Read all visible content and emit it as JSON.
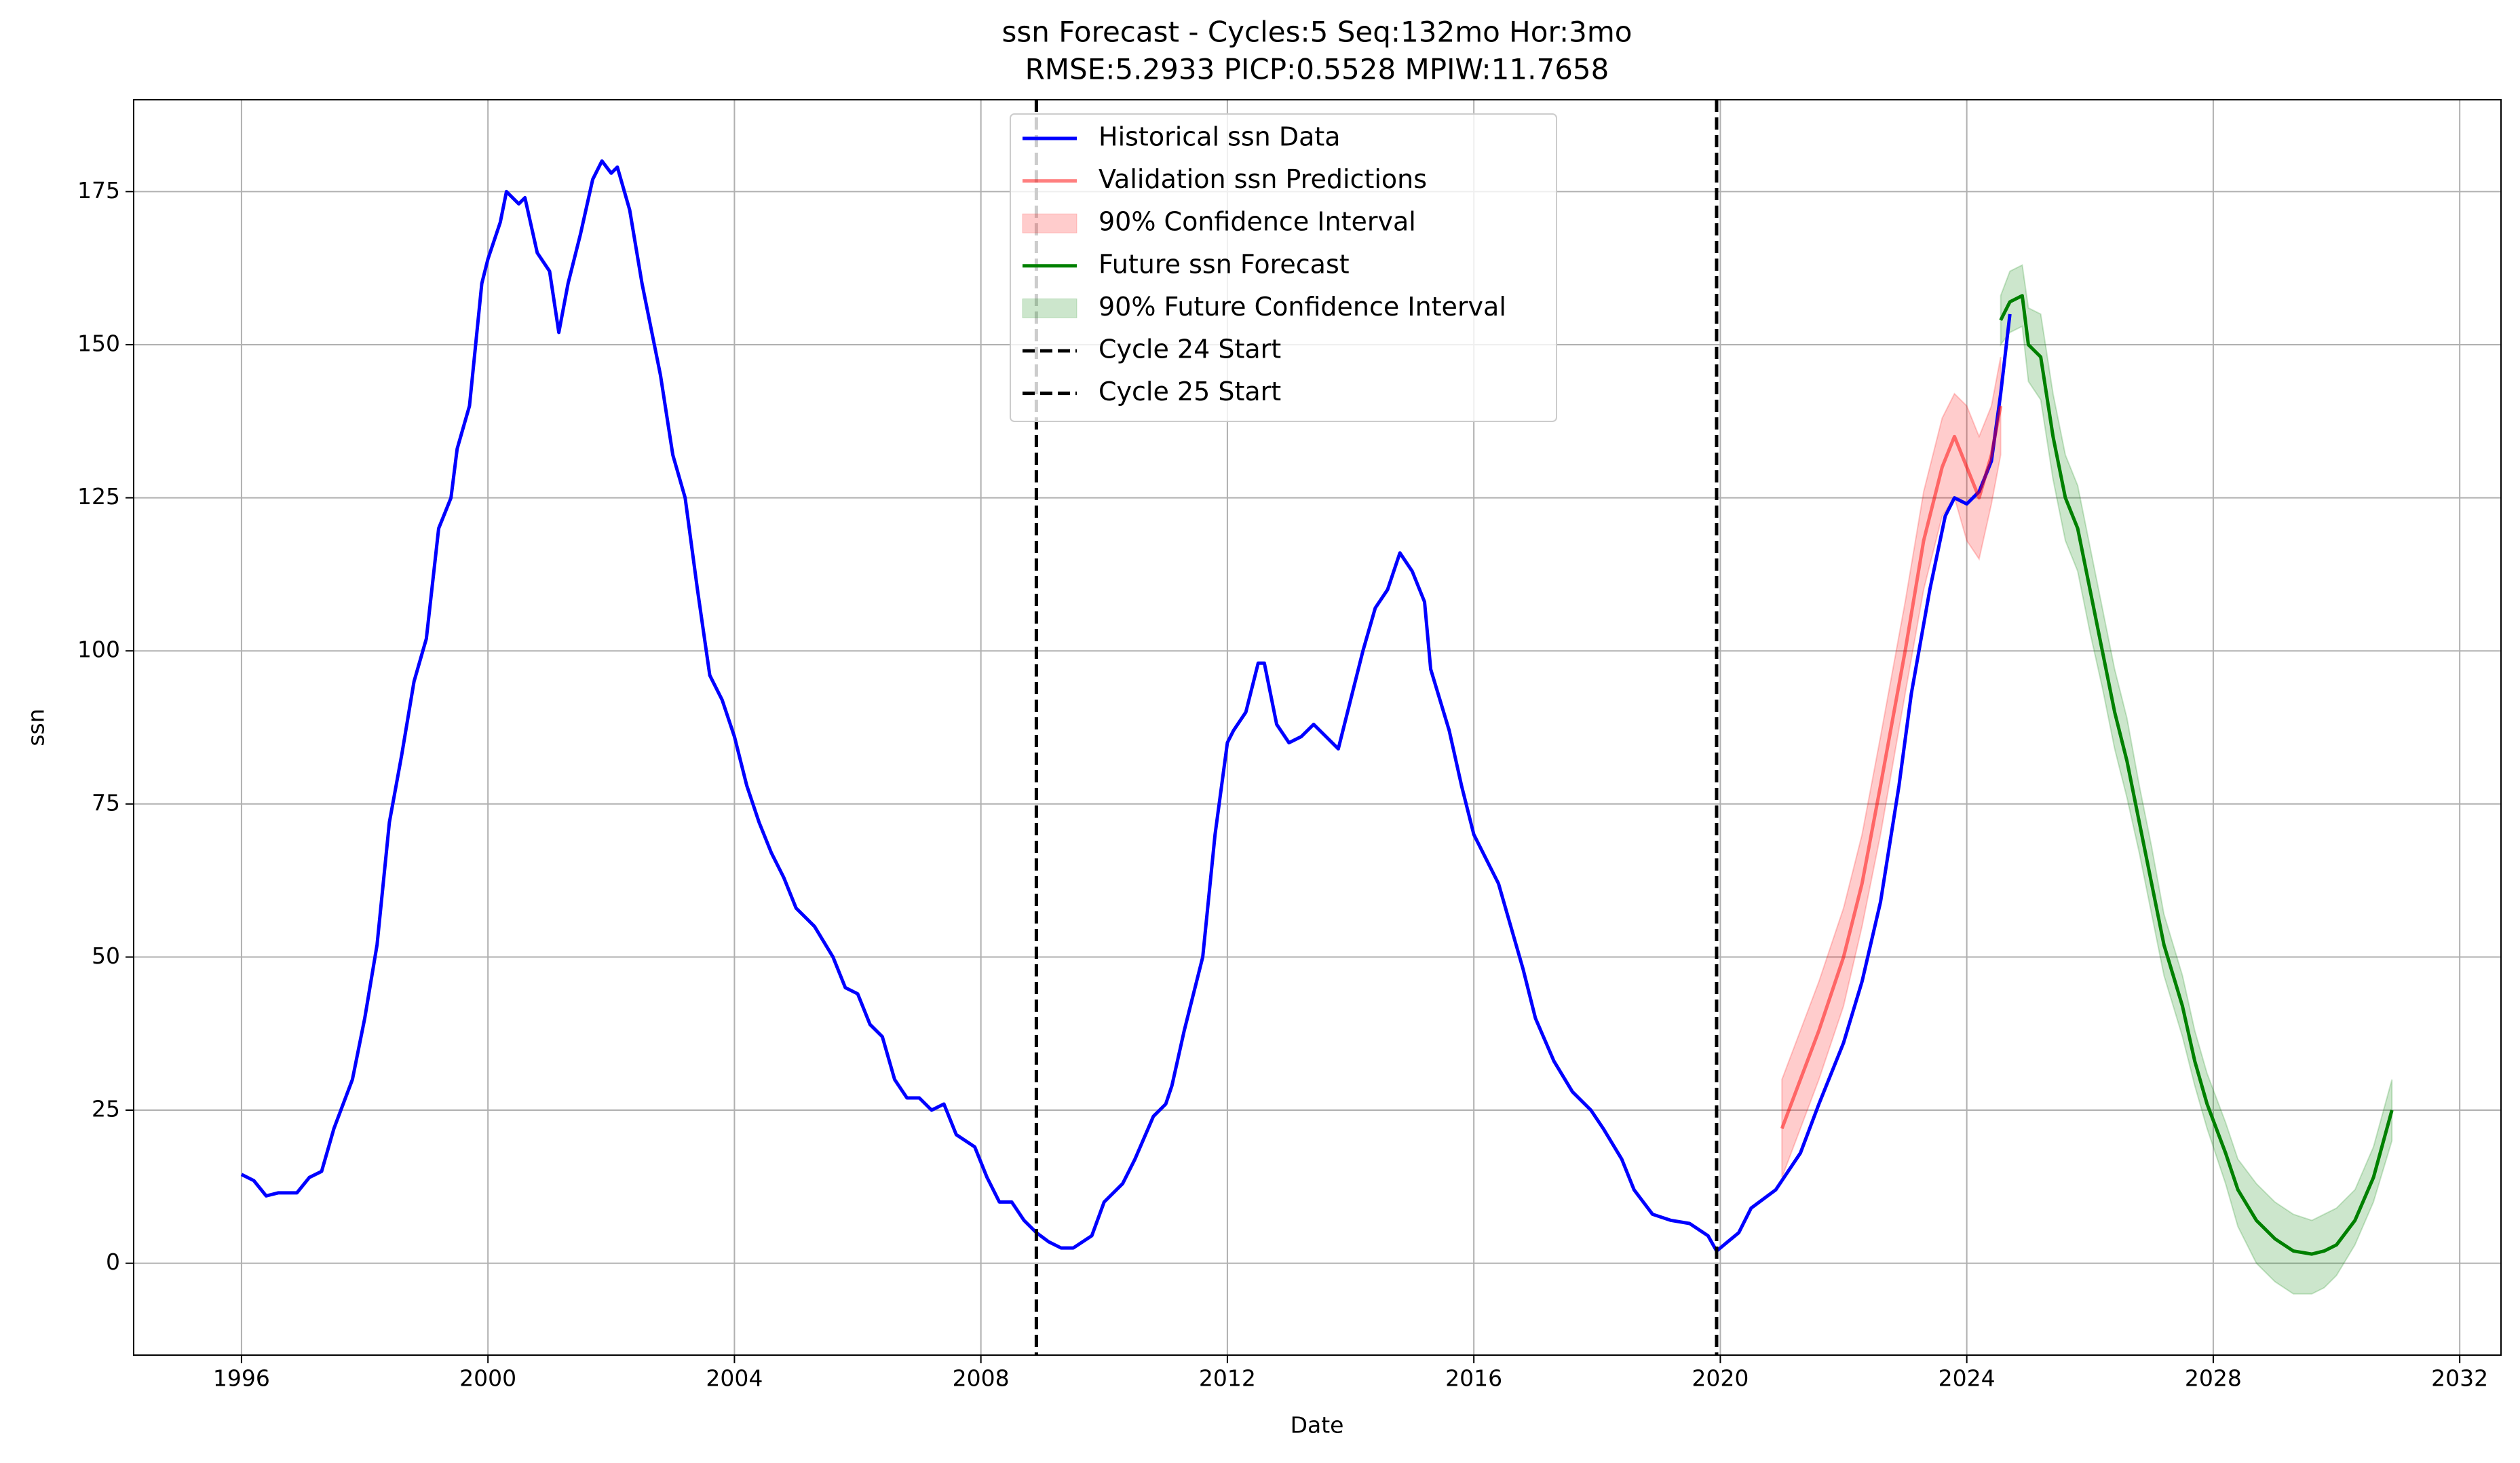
{
  "chart_data": {
    "type": "line",
    "title": "ssn Forecast - Cycles:5 Seq:132mo Hor:3mo",
    "subtitle": "RMSE:5.2933 PICP:0.5528 MPIW:11.7658",
    "x_label": "Date",
    "y_label": "ssn",
    "xlim": [
      1994.25,
      2032.67
    ],
    "ylim": [
      -15,
      190
    ],
    "xticks": [
      1996,
      2000,
      2004,
      2008,
      2012,
      2016,
      2020,
      2024,
      2028,
      2032
    ],
    "yticks": [
      0,
      25,
      50,
      75,
      100,
      125,
      150,
      175
    ],
    "grid": true,
    "legend": "upper center",
    "series": [
      {
        "name": "Historical ssn Data",
        "kind": "line",
        "color": "#0000ff",
        "opacity": 1,
        "x": [
          1996.0,
          1996.2,
          1996.4,
          1996.6,
          1996.9,
          1997.1,
          1997.3,
          1997.5,
          1997.8,
          1998.0,
          1998.2,
          1998.4,
          1998.6,
          1998.8,
          1999.0,
          1999.2,
          1999.4,
          1999.5,
          1999.7,
          1999.9,
          2000.0,
          2000.2,
          2000.3,
          2000.5,
          2000.6,
          2000.8,
          2001.0,
          2001.15,
          2001.3,
          2001.5,
          2001.7,
          2001.85,
          2002.0,
          2002.1,
          2002.3,
          2002.5,
          2002.8,
          2003.0,
          2003.2,
          2003.4,
          2003.6,
          2003.8,
          2004.0,
          2004.2,
          2004.4,
          2004.6,
          2004.8,
          2005.0,
          2005.3,
          2005.6,
          2005.8,
          2006.0,
          2006.2,
          2006.4,
          2006.6,
          2006.8,
          2007.0,
          2007.2,
          2007.4,
          2007.6,
          2007.9,
          2008.1,
          2008.3,
          2008.5,
          2008.7,
          2008.9,
          2009.1,
          2009.3,
          2009.5,
          2009.8,
          2010.0,
          2010.3,
          2010.5,
          2010.8,
          2011.0,
          2011.1,
          2011.3,
          2011.6,
          2011.8,
          2012.0,
          2012.1,
          2012.3,
          2012.5,
          2012.6,
          2012.8,
          2013.0,
          2013.2,
          2013.4,
          2013.6,
          2013.8,
          2014.0,
          2014.2,
          2014.4,
          2014.6,
          2014.8,
          2015.0,
          2015.2,
          2015.3,
          2015.6,
          2015.8,
          2016.0,
          2016.2,
          2016.4,
          2016.6,
          2016.8,
          2017.0,
          2017.3,
          2017.6,
          2017.9,
          2018.1,
          2018.4,
          2018.6,
          2018.9,
          2019.2,
          2019.5,
          2019.8,
          2019.94,
          2020.3,
          2020.5,
          2020.9,
          2021.3,
          2021.6,
          2022.0,
          2022.3,
          2022.6,
          2022.9,
          2023.1,
          2023.4,
          2023.65,
          2023.8,
          2024.0,
          2024.2,
          2024.4,
          2024.55,
          2024.7
        ],
        "values": [
          14.5,
          13.5,
          11,
          11.5,
          11.5,
          14,
          15,
          22,
          30,
          40,
          52,
          72,
          83,
          95,
          102,
          120,
          125,
          133,
          140,
          160,
          164,
          170,
          175,
          173,
          174,
          165,
          162,
          152,
          160,
          168,
          177,
          180,
          178,
          179,
          172,
          160,
          145,
          132,
          125,
          110,
          96,
          92,
          86,
          78,
          72,
          67,
          63,
          58,
          55,
          50,
          45,
          44,
          39,
          37,
          30,
          27,
          27,
          25,
          26,
          21,
          19,
          14,
          10,
          10,
          7,
          5,
          3.5,
          2.5,
          2.5,
          4.5,
          10,
          13,
          17,
          24,
          26,
          29,
          38,
          50,
          70,
          85,
          87,
          90,
          98,
          98,
          88,
          85,
          86,
          88,
          86,
          84,
          92,
          100,
          107,
          110,
          116,
          113,
          108,
          97,
          87,
          78,
          70,
          66,
          62,
          55,
          48,
          40,
          33,
          28,
          25,
          22,
          17,
          12,
          8,
          7,
          6.5,
          4.5,
          2,
          5,
          9,
          12,
          18,
          26,
          36,
          46,
          59,
          78,
          93,
          110,
          122,
          125,
          124,
          126,
          131,
          142,
          155
        ]
      },
      {
        "name": "Validation ssn Predictions",
        "kind": "line",
        "color": "#ff0000",
        "opacity": 0.5,
        "x": [
          2021.0,
          2021.3,
          2021.6,
          2022.0,
          2022.3,
          2022.6,
          2023.0,
          2023.3,
          2023.6,
          2023.8,
          2024.0,
          2024.2,
          2024.4,
          2024.55
        ],
        "values": [
          22,
          30,
          38,
          50,
          62,
          78,
          100,
          118,
          130,
          135,
          130,
          125,
          132,
          140
        ]
      },
      {
        "name": "90% Confidence Interval",
        "kind": "band",
        "color": "#ff0000",
        "opacity": 0.2,
        "x": [
          2021.0,
          2021.3,
          2021.6,
          2022.0,
          2022.3,
          2022.6,
          2023.0,
          2023.3,
          2023.6,
          2023.8,
          2024.0,
          2024.2,
          2024.4,
          2024.55
        ],
        "lower": [
          14,
          22,
          30,
          42,
          55,
          70,
          93,
          110,
          122,
          125,
          118,
          115,
          124,
          132
        ],
        "upper": [
          30,
          38,
          46,
          58,
          70,
          86,
          108,
          126,
          138,
          142,
          140,
          135,
          140,
          148
        ]
      },
      {
        "name": "Future ssn Forecast",
        "kind": "line",
        "color": "#008000",
        "opacity": 1,
        "x": [
          2024.55,
          2024.7,
          2024.9,
          2025.0,
          2025.2,
          2025.4,
          2025.6,
          2025.8,
          2026.0,
          2026.2,
          2026.4,
          2026.6,
          2026.8,
          2027.0,
          2027.2,
          2027.5,
          2027.7,
          2027.9,
          2028.2,
          2028.4,
          2028.7,
          2029.0,
          2029.3,
          2029.6,
          2029.8,
          2030.0,
          2030.3,
          2030.6,
          2030.9
        ],
        "values": [
          154,
          157,
          158,
          150,
          148,
          135,
          125,
          120,
          110,
          100,
          90,
          82,
          72,
          62,
          52,
          42,
          33,
          26,
          18,
          12,
          7,
          4,
          2,
          1.5,
          2,
          3,
          7,
          14,
          25
        ]
      },
      {
        "name": "90% Future Confidence Interval",
        "kind": "band",
        "color": "#008000",
        "opacity": 0.2,
        "x": [
          2024.55,
          2024.7,
          2024.9,
          2025.0,
          2025.2,
          2025.4,
          2025.6,
          2025.8,
          2026.0,
          2026.2,
          2026.4,
          2026.6,
          2026.8,
          2027.0,
          2027.2,
          2027.5,
          2027.7,
          2027.9,
          2028.2,
          2028.4,
          2028.7,
          2029.0,
          2029.3,
          2029.6,
          2029.8,
          2030.0,
          2030.3,
          2030.6,
          2030.9
        ],
        "lower": [
          150,
          152,
          153,
          144,
          141,
          128,
          118,
          113,
          103,
          94,
          84,
          76,
          67,
          57,
          47,
          37,
          29,
          22,
          13,
          6,
          0,
          -3,
          -5,
          -5,
          -4,
          -2,
          3,
          10,
          20
        ],
        "upper": [
          158,
          162,
          163,
          156,
          155,
          142,
          132,
          127,
          117,
          107,
          97,
          89,
          78,
          68,
          57,
          47,
          38,
          31,
          23,
          17,
          13,
          10,
          8,
          7,
          8,
          9,
          12,
          19,
          30
        ]
      }
    ],
    "vlines": [
      {
        "name": "Cycle 24 Start",
        "x": 2008.9,
        "color": "#000000"
      },
      {
        "name": "Cycle 25 Start",
        "x": 2019.94,
        "color": "#000000"
      }
    ]
  }
}
